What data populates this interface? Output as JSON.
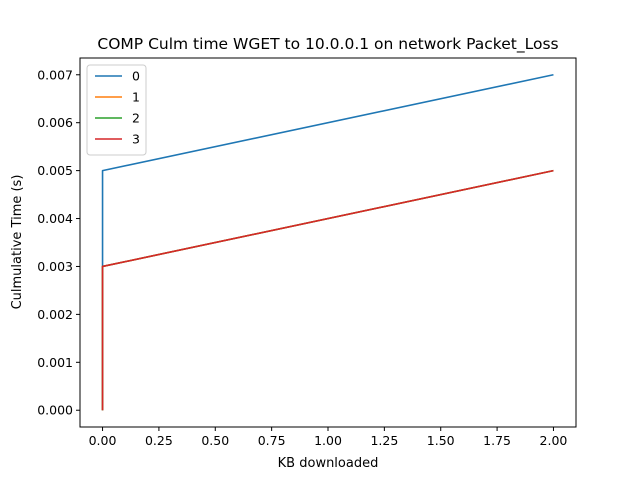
{
  "chart_data": {
    "type": "line",
    "title": "COMP Culm time WGET to 10.0.0.1 on network Packet_Loss",
    "xlabel": "KB downloaded",
    "ylabel": "Culmulative Time (s)",
    "xlim": [
      -0.1,
      2.1
    ],
    "ylim": [
      -0.00035,
      0.00735
    ],
    "xticks": [
      0.0,
      0.25,
      0.5,
      0.75,
      1.0,
      1.25,
      1.5,
      1.75,
      2.0
    ],
    "xtick_labels": [
      "0.00",
      "0.25",
      "0.50",
      "0.75",
      "1.00",
      "1.25",
      "1.50",
      "1.75",
      "2.00"
    ],
    "yticks": [
      0.0,
      0.001,
      0.002,
      0.003,
      0.004,
      0.005,
      0.006,
      0.007
    ],
    "ytick_labels": [
      "0.000",
      "0.001",
      "0.002",
      "0.003",
      "0.004",
      "0.005",
      "0.006",
      "0.007"
    ],
    "grid": false,
    "legend_position": "top-left",
    "series": [
      {
        "name": "0",
        "color": "#1f77b4",
        "x": [
          0,
          0,
          2
        ],
        "y": [
          0,
          0.005,
          0.007
        ]
      },
      {
        "name": "1",
        "color": "#ff7f0e",
        "x": [
          0,
          0,
          2
        ],
        "y": [
          0,
          0.003,
          0.005
        ]
      },
      {
        "name": "2",
        "color": "#2ca02c",
        "x": [
          0,
          0,
          2
        ],
        "y": [
          0,
          0.003,
          0.005
        ]
      },
      {
        "name": "3",
        "color": "#d62728",
        "x": [
          0,
          0,
          2
        ],
        "y": [
          0,
          0.003,
          0.005
        ]
      }
    ]
  }
}
